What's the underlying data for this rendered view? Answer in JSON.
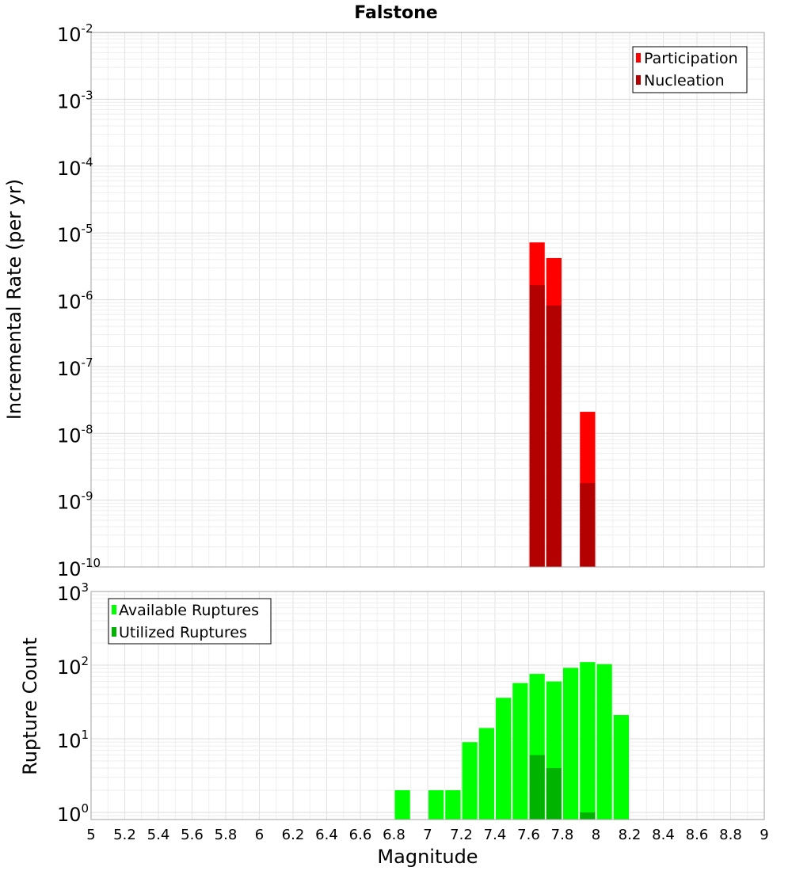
{
  "chart_data": [
    {
      "type": "bar",
      "title": "Falstone",
      "xlabel": "Magnitude",
      "ylabel": "Incremental Rate (per yr)",
      "yscale": "log",
      "ylim": [
        1e-10,
        0.01
      ],
      "xlim": [
        5,
        9
      ],
      "bar_width": 0.1,
      "legend_position": "top-right",
      "ytick_exponents": [
        "-10",
        "-9",
        "-8",
        "-7",
        "-6",
        "-5",
        "-4",
        "-3",
        "-2"
      ],
      "series": [
        {
          "name": "Participation",
          "color": "#ff0000",
          "points": [
            {
              "x": 7.65,
              "y": 7.2e-06
            },
            {
              "x": 7.75,
              "y": 4.2e-06
            },
            {
              "x": 7.95,
              "y": 2.1e-08
            }
          ]
        },
        {
          "name": "Nucleation",
          "color": "#b30000",
          "points": [
            {
              "x": 7.65,
              "y": 1.65e-06
            },
            {
              "x": 7.75,
              "y": 8.2e-07
            },
            {
              "x": 7.95,
              "y": 1.8e-09
            }
          ]
        }
      ]
    },
    {
      "type": "bar",
      "xlabel": "Magnitude",
      "ylabel": "Rupture Count",
      "yscale": "log",
      "ylim": [
        0.8,
        1000
      ],
      "xlim": [
        5,
        9
      ],
      "bar_width": 0.1,
      "legend_position": "top-left",
      "ytick_exponents": [
        "0",
        "1",
        "2",
        "3"
      ],
      "xticks": [
        "5",
        "5.2",
        "5.4",
        "5.6",
        "5.8",
        "6",
        "6.2",
        "6.4",
        "6.6",
        "6.8",
        "7",
        "7.2",
        "7.4",
        "7.6",
        "7.8",
        "8",
        "8.2",
        "8.4",
        "8.6",
        "8.8",
        "9"
      ],
      "series": [
        {
          "name": "Available Ruptures",
          "color": "#00ff00",
          "points": [
            {
              "x": 6.85,
              "y": 2
            },
            {
              "x": 7.05,
              "y": 2
            },
            {
              "x": 7.15,
              "y": 2
            },
            {
              "x": 7.25,
              "y": 9
            },
            {
              "x": 7.35,
              "y": 14
            },
            {
              "x": 7.45,
              "y": 36
            },
            {
              "x": 7.55,
              "y": 57
            },
            {
              "x": 7.65,
              "y": 76
            },
            {
              "x": 7.75,
              "y": 60
            },
            {
              "x": 7.85,
              "y": 92
            },
            {
              "x": 7.95,
              "y": 110
            },
            {
              "x": 8.05,
              "y": 103
            },
            {
              "x": 8.15,
              "y": 21
            }
          ]
        },
        {
          "name": "Utilized Ruptures",
          "color": "#00b300",
          "points": [
            {
              "x": 7.65,
              "y": 6
            },
            {
              "x": 7.75,
              "y": 4
            },
            {
              "x": 7.95,
              "y": 1
            }
          ]
        }
      ]
    }
  ]
}
